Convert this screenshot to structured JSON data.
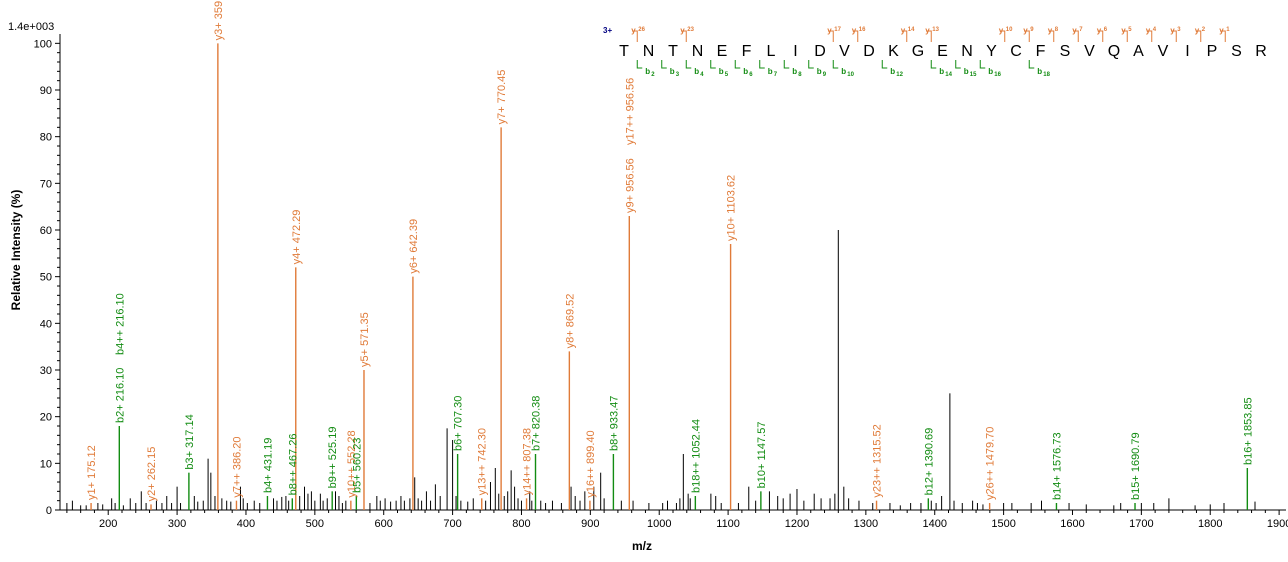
{
  "chart_data": {
    "type": "bar",
    "title": "",
    "scale_label": "1.4e+003",
    "xlabel": "m/z",
    "ylabel": "Relative  Intensity (%)",
    "xlim": [
      130,
      1910
    ],
    "ylim": [
      0,
      102
    ],
    "x_ticks": [
      200,
      300,
      400,
      500,
      600,
      700,
      800,
      900,
      1000,
      1100,
      1200,
      1300,
      1400,
      1500,
      1600,
      1700,
      1800,
      1900
    ],
    "y_ticks": [
      0,
      10,
      20,
      30,
      40,
      50,
      60,
      70,
      80,
      90,
      100
    ],
    "colors": {
      "y_ion": "#E07B39",
      "b_ion": "#128C12",
      "other": "#000000",
      "charge": "#000080"
    },
    "labeled_peaks": [
      {
        "mz": 175.12,
        "intensity": 1.5,
        "label": "y1+ 175.12",
        "type": "y"
      },
      {
        "mz": 216.1,
        "intensity": 18,
        "label": "b2+ 216.10",
        "type": "b"
      },
      {
        "mz": 216.1,
        "intensity": 18,
        "label": "b4++ 216.10",
        "type": "b",
        "stacked": true
      },
      {
        "mz": 262.15,
        "intensity": 1.2,
        "label": "y2+ 262.15",
        "type": "y"
      },
      {
        "mz": 317.14,
        "intensity": 8,
        "label": "b3+ 317.14",
        "type": "b"
      },
      {
        "mz": 359.2,
        "intensity": 100,
        "label": "y3+ 359.2",
        "type": "y"
      },
      {
        "mz": 386.2,
        "intensity": 2,
        "label": "y7++ 386.20",
        "type": "y"
      },
      {
        "mz": 431.19,
        "intensity": 3,
        "label": "b4+ 431.19",
        "type": "b"
      },
      {
        "mz": 467.26,
        "intensity": 2.5,
        "label": "b8++ 467.26",
        "type": "b"
      },
      {
        "mz": 472.29,
        "intensity": 52,
        "label": "y4+ 472.29",
        "type": "y"
      },
      {
        "mz": 525.19,
        "intensity": 4,
        "label": "b9++ 525.19",
        "type": "b"
      },
      {
        "mz": 552.28,
        "intensity": 2,
        "label": "y10++ 552.28",
        "type": "y"
      },
      {
        "mz": 560.23,
        "intensity": 3,
        "label": "b5+ 560.23",
        "type": "b"
      },
      {
        "mz": 571.35,
        "intensity": 30,
        "label": "y5+ 571.35",
        "type": "y"
      },
      {
        "mz": 642.39,
        "intensity": 50,
        "label": "y6+ 642.39",
        "type": "y"
      },
      {
        "mz": 707.3,
        "intensity": 12,
        "label": "b6+ 707.30",
        "type": "b"
      },
      {
        "mz": 742.3,
        "intensity": 2.5,
        "label": "y13++ 742.30",
        "type": "y"
      },
      {
        "mz": 770.45,
        "intensity": 82,
        "label": "y7+ 770.45",
        "type": "y"
      },
      {
        "mz": 807.38,
        "intensity": 2.5,
        "label": "y14++ 807.38",
        "type": "y"
      },
      {
        "mz": 820.38,
        "intensity": 12,
        "label": "b7+ 820.38",
        "type": "b"
      },
      {
        "mz": 869.52,
        "intensity": 34,
        "label": "y8+ 869.52",
        "type": "y"
      },
      {
        "mz": 899.4,
        "intensity": 2,
        "label": "y16++ 899.40",
        "type": "y"
      },
      {
        "mz": 933.47,
        "intensity": 12,
        "label": "b8+ 933.47",
        "type": "b"
      },
      {
        "mz": 956.56,
        "intensity": 63,
        "label": "y9+ 956.56",
        "type": "y"
      },
      {
        "mz": 956.56,
        "intensity": 63,
        "label": "y17++ 956.56",
        "type": "y",
        "stacked": true
      },
      {
        "mz": 1052.44,
        "intensity": 3,
        "label": "b18++ 1052.44",
        "type": "b"
      },
      {
        "mz": 1103.62,
        "intensity": 57,
        "label": "y10+ 1103.62",
        "type": "y"
      },
      {
        "mz": 1147.57,
        "intensity": 4,
        "label": "b10+ 1147.57",
        "type": "b"
      },
      {
        "mz": 1315.52,
        "intensity": 2,
        "label": "y23++ 1315.52",
        "type": "y"
      },
      {
        "mz": 1390.69,
        "intensity": 2.5,
        "label": "b12+ 1390.69",
        "type": "b"
      },
      {
        "mz": 1479.7,
        "intensity": 1.5,
        "label": "y26++ 1479.70",
        "type": "y"
      },
      {
        "mz": 1576.73,
        "intensity": 1.5,
        "label": "b14+ 1576.73",
        "type": "b"
      },
      {
        "mz": 1690.79,
        "intensity": 1.5,
        "label": "b15+ 1690.79",
        "type": "b"
      },
      {
        "mz": 1853.85,
        "intensity": 9,
        "label": "b16+ 1853.85",
        "type": "b"
      }
    ],
    "unlabeled_peaks": [
      [
        140,
        1.5
      ],
      [
        148,
        2
      ],
      [
        160,
        1
      ],
      [
        168,
        1
      ],
      [
        185,
        1.5
      ],
      [
        192,
        1.2
      ],
      [
        205,
        2.5
      ],
      [
        210,
        1.5
      ],
      [
        222,
        1
      ],
      [
        232,
        2.5
      ],
      [
        240,
        1.5
      ],
      [
        248,
        4
      ],
      [
        255,
        1.5
      ],
      [
        270,
        2
      ],
      [
        278,
        1.5
      ],
      [
        285,
        3
      ],
      [
        292,
        1.5
      ],
      [
        300,
        5
      ],
      [
        305,
        1.5
      ],
      [
        325,
        3
      ],
      [
        330,
        1.8
      ],
      [
        338,
        2
      ],
      [
        345,
        11
      ],
      [
        349,
        8
      ],
      [
        355,
        3
      ],
      [
        365,
        2.5
      ],
      [
        372,
        2
      ],
      [
        378,
        1.8
      ],
      [
        392,
        5
      ],
      [
        396,
        2.5
      ],
      [
        402,
        1.5
      ],
      [
        412,
        2
      ],
      [
        420,
        1.5
      ],
      [
        440,
        2.5
      ],
      [
        445,
        2
      ],
      [
        452,
        2.8
      ],
      [
        458,
        3
      ],
      [
        462,
        2
      ],
      [
        478,
        3
      ],
      [
        485,
        5
      ],
      [
        490,
        3.5
      ],
      [
        495,
        4
      ],
      [
        500,
        2
      ],
      [
        508,
        3.5
      ],
      [
        512,
        2
      ],
      [
        518,
        2.5
      ],
      [
        530,
        4
      ],
      [
        535,
        3
      ],
      [
        540,
        1.5
      ],
      [
        545,
        2
      ],
      [
        580,
        1.5
      ],
      [
        590,
        3
      ],
      [
        595,
        2
      ],
      [
        602,
        2.5
      ],
      [
        610,
        1.8
      ],
      [
        618,
        2
      ],
      [
        625,
        3
      ],
      [
        630,
        2
      ],
      [
        638,
        2.5
      ],
      [
        645,
        7
      ],
      [
        650,
        2.5
      ],
      [
        655,
        2
      ],
      [
        662,
        4
      ],
      [
        668,
        2
      ],
      [
        675,
        5.5
      ],
      [
        682,
        3
      ],
      [
        692,
        17.5
      ],
      [
        700,
        15
      ],
      [
        705,
        3
      ],
      [
        712,
        2
      ],
      [
        722,
        1.8
      ],
      [
        730,
        2.5
      ],
      [
        748,
        2
      ],
      [
        755,
        6
      ],
      [
        762,
        9
      ],
      [
        767,
        3.5
      ],
      [
        775,
        3
      ],
      [
        780,
        4
      ],
      [
        785,
        8.5
      ],
      [
        790,
        5
      ],
      [
        795,
        2.5
      ],
      [
        800,
        2
      ],
      [
        812,
        4
      ],
      [
        815,
        2
      ],
      [
        828,
        2
      ],
      [
        835,
        1.5
      ],
      [
        845,
        2
      ],
      [
        858,
        1.5
      ],
      [
        872,
        5
      ],
      [
        878,
        3
      ],
      [
        885,
        2
      ],
      [
        892,
        4
      ],
      [
        905,
        5
      ],
      [
        915,
        8
      ],
      [
        920,
        2.5
      ],
      [
        945,
        2
      ],
      [
        962,
        2
      ],
      [
        985,
        1.5
      ],
      [
        1005,
        1.5
      ],
      [
        1012,
        2
      ],
      [
        1025,
        1.5
      ],
      [
        1030,
        2.5
      ],
      [
        1035,
        12
      ],
      [
        1042,
        3.5
      ],
      [
        1045,
        2.5
      ],
      [
        1075,
        3.5
      ],
      [
        1082,
        3
      ],
      [
        1090,
        1.5
      ],
      [
        1115,
        1.5
      ],
      [
        1130,
        5
      ],
      [
        1140,
        2
      ],
      [
        1160,
        4
      ],
      [
        1172,
        3
      ],
      [
        1180,
        2.5
      ],
      [
        1190,
        3.5
      ],
      [
        1200,
        4.5
      ],
      [
        1210,
        2
      ],
      [
        1225,
        3.5
      ],
      [
        1235,
        2.5
      ],
      [
        1248,
        2.5
      ],
      [
        1255,
        3.5
      ],
      [
        1260,
        60
      ],
      [
        1268,
        5
      ],
      [
        1275,
        2.5
      ],
      [
        1290,
        2
      ],
      [
        1310,
        1.5
      ],
      [
        1335,
        1.5
      ],
      [
        1350,
        1
      ],
      [
        1365,
        1.5
      ],
      [
        1380,
        1.5
      ],
      [
        1395,
        2
      ],
      [
        1402,
        1.5
      ],
      [
        1410,
        3
      ],
      [
        1422,
        25
      ],
      [
        1428,
        2
      ],
      [
        1440,
        1.5
      ],
      [
        1455,
        2
      ],
      [
        1462,
        1.5
      ],
      [
        1470,
        1.2
      ],
      [
        1500,
        1.5
      ],
      [
        1512,
        1.5
      ],
      [
        1540,
        1.5
      ],
      [
        1555,
        2
      ],
      [
        1595,
        1.5
      ],
      [
        1620,
        1.2
      ],
      [
        1660,
        1
      ],
      [
        1670,
        1.5
      ],
      [
        1700,
        1.5
      ],
      [
        1718,
        1.5
      ],
      [
        1740,
        2.5
      ],
      [
        1778,
        1
      ],
      [
        1800,
        1.2
      ],
      [
        1820,
        1.5
      ],
      [
        1865,
        1.8
      ]
    ],
    "sequence": {
      "charge_label": "3+",
      "residues": [
        "T",
        "N",
        "T",
        "N",
        "E",
        "F",
        "L",
        "I",
        "D",
        "V",
        "D",
        "K",
        "G",
        "E",
        "N",
        "Y",
        "C",
        "F",
        "S",
        "V",
        "Q",
        "A",
        "V",
        "I",
        "P",
        "S",
        "R"
      ],
      "y_ions": [
        26,
        null,
        23,
        null,
        null,
        null,
        null,
        null,
        17,
        16,
        null,
        14,
        13,
        null,
        null,
        10,
        9,
        8,
        7,
        6,
        5,
        4,
        3,
        2,
        1
      ],
      "b_ions": [
        2,
        3,
        4,
        5,
        6,
        7,
        8,
        9,
        10,
        null,
        12,
        null,
        14,
        15,
        16,
        null,
        18
      ]
    }
  }
}
